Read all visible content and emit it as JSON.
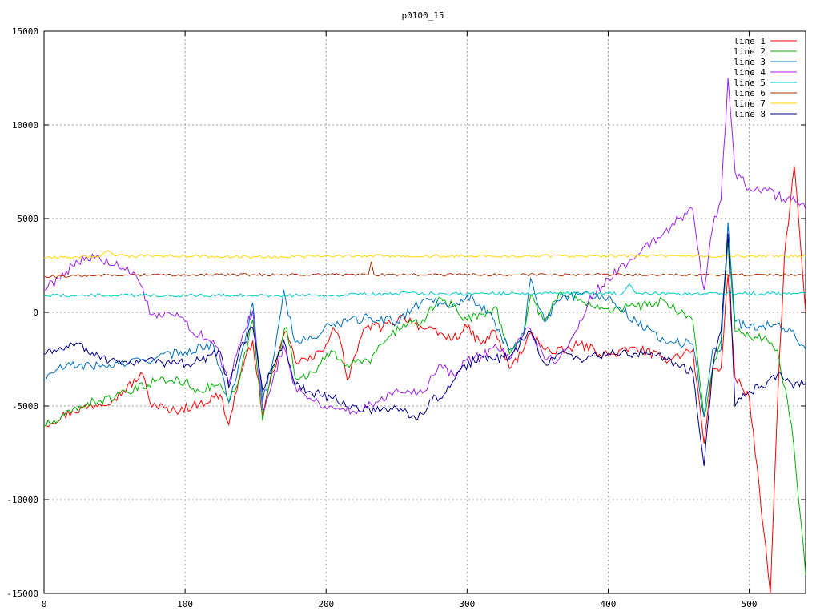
{
  "chart_data": {
    "type": "line",
    "title": "p0100_15",
    "xlabel": "",
    "ylabel": "",
    "xlim": [
      0,
      540
    ],
    "ylim": [
      -15000,
      15000
    ],
    "x_ticks": [
      0,
      100,
      200,
      300,
      400,
      500
    ],
    "y_ticks": [
      -15000,
      -10000,
      -5000,
      0,
      5000,
      10000,
      15000
    ],
    "grid": true,
    "legend_position": "top-right",
    "series": [
      {
        "name": "line 1",
        "color": "#ff0000",
        "points": [
          [
            0,
            -6000
          ],
          [
            20,
            -5300
          ],
          [
            50,
            -4600
          ],
          [
            70,
            -3300
          ],
          [
            75,
            -4800
          ],
          [
            90,
            -5300
          ],
          [
            110,
            -4900
          ],
          [
            125,
            -4400
          ],
          [
            131,
            -6000
          ],
          [
            138,
            -3600
          ],
          [
            148,
            -1500
          ],
          [
            155,
            -5500
          ],
          [
            162,
            -3200
          ],
          [
            172,
            -1000
          ],
          [
            178,
            -2600
          ],
          [
            190,
            -2500
          ],
          [
            200,
            -1700
          ],
          [
            205,
            -800
          ],
          [
            210,
            -1500
          ],
          [
            215,
            -3600
          ],
          [
            225,
            -1300
          ],
          [
            230,
            -700
          ],
          [
            240,
            -800
          ],
          [
            255,
            -200
          ],
          [
            270,
            -900
          ],
          [
            290,
            -1400
          ],
          [
            300,
            -800
          ],
          [
            310,
            -1700
          ],
          [
            320,
            -1000
          ],
          [
            330,
            -3000
          ],
          [
            340,
            -2000
          ],
          [
            345,
            -1100
          ],
          [
            360,
            -2200
          ],
          [
            370,
            -2000
          ],
          [
            380,
            -1700
          ],
          [
            400,
            -2300
          ],
          [
            420,
            -1900
          ],
          [
            440,
            -2500
          ],
          [
            460,
            -2000
          ],
          [
            468,
            -7000
          ],
          [
            474,
            -3000
          ],
          [
            480,
            -3000
          ],
          [
            485,
            2000
          ],
          [
            490,
            -3500
          ],
          [
            500,
            -4500
          ],
          [
            510,
            -11500
          ],
          [
            515,
            -15000
          ],
          [
            520,
            -5000
          ],
          [
            525,
            3000
          ],
          [
            532,
            7800
          ],
          [
            537,
            3000
          ],
          [
            540,
            0
          ]
        ]
      },
      {
        "name": "line 2",
        "color": "#00b000",
        "points": [
          [
            0,
            -6000
          ],
          [
            10,
            -5800
          ],
          [
            25,
            -5000
          ],
          [
            40,
            -4700
          ],
          [
            60,
            -4300
          ],
          [
            80,
            -3600
          ],
          [
            100,
            -3700
          ],
          [
            110,
            -4200
          ],
          [
            125,
            -3800
          ],
          [
            131,
            -4800
          ],
          [
            138,
            -3800
          ],
          [
            148,
            -400
          ],
          [
            155,
            -5800
          ],
          [
            162,
            -3000
          ],
          [
            172,
            -800
          ],
          [
            178,
            -3500
          ],
          [
            190,
            -3200
          ],
          [
            205,
            -2100
          ],
          [
            215,
            -2800
          ],
          [
            230,
            -2600
          ],
          [
            240,
            -1700
          ],
          [
            255,
            -600
          ],
          [
            270,
            -500
          ],
          [
            280,
            800
          ],
          [
            290,
            300
          ],
          [
            300,
            -400
          ],
          [
            310,
            -100
          ],
          [
            320,
            300
          ],
          [
            330,
            -2200
          ],
          [
            340,
            -1100
          ],
          [
            345,
            900
          ],
          [
            355,
            -500
          ],
          [
            365,
            1000
          ],
          [
            380,
            700
          ],
          [
            400,
            200
          ],
          [
            420,
            300
          ],
          [
            440,
            600
          ],
          [
            460,
            -400
          ],
          [
            468,
            -5600
          ],
          [
            474,
            -3000
          ],
          [
            480,
            -1500
          ],
          [
            485,
            3800
          ],
          [
            490,
            -1000
          ],
          [
            500,
            -1300
          ],
          [
            510,
            -1400
          ],
          [
            520,
            -2000
          ],
          [
            530,
            -6000
          ],
          [
            535,
            -10000
          ],
          [
            540,
            -14000
          ]
        ]
      },
      {
        "name": "line 3",
        "color": "#0070c0",
        "points": [
          [
            0,
            -3600
          ],
          [
            10,
            -3000
          ],
          [
            25,
            -2800
          ],
          [
            40,
            -2900
          ],
          [
            60,
            -2700
          ],
          [
            80,
            -2400
          ],
          [
            100,
            -2100
          ],
          [
            120,
            -1700
          ],
          [
            131,
            -4800
          ],
          [
            138,
            -2800
          ],
          [
            148,
            500
          ],
          [
            155,
            -4800
          ],
          [
            162,
            -2700
          ],
          [
            170,
            1200
          ],
          [
            178,
            -1600
          ],
          [
            190,
            -1400
          ],
          [
            205,
            -600
          ],
          [
            215,
            -500
          ],
          [
            230,
            -300
          ],
          [
            250,
            -500
          ],
          [
            270,
            700
          ],
          [
            290,
            400
          ],
          [
            300,
            900
          ],
          [
            315,
            0
          ],
          [
            330,
            -2000
          ],
          [
            340,
            -1100
          ],
          [
            345,
            1800
          ],
          [
            355,
            -500
          ],
          [
            365,
            600
          ],
          [
            380,
            1000
          ],
          [
            400,
            800
          ],
          [
            420,
            -500
          ],
          [
            440,
            -1500
          ],
          [
            460,
            -1700
          ],
          [
            468,
            -5600
          ],
          [
            474,
            -2000
          ],
          [
            480,
            -2000
          ],
          [
            485,
            4800
          ],
          [
            490,
            -500
          ],
          [
            500,
            -800
          ],
          [
            510,
            -700
          ],
          [
            520,
            -600
          ],
          [
            530,
            -1000
          ],
          [
            540,
            -2000
          ]
        ]
      },
      {
        "name": "line 4",
        "color": "#a020f0",
        "points": [
          [
            0,
            1200
          ],
          [
            10,
            1800
          ],
          [
            20,
            2500
          ],
          [
            30,
            3000
          ],
          [
            40,
            2800
          ],
          [
            50,
            2500
          ],
          [
            65,
            2000
          ],
          [
            70,
            1300
          ],
          [
            75,
            -100
          ],
          [
            80,
            -300
          ],
          [
            90,
            -100
          ],
          [
            100,
            -500
          ],
          [
            110,
            -1200
          ],
          [
            120,
            -1500
          ],
          [
            131,
            -3800
          ],
          [
            138,
            -1800
          ],
          [
            148,
            100
          ],
          [
            155,
            -5200
          ],
          [
            162,
            -3700
          ],
          [
            170,
            -1800
          ],
          [
            178,
            -3900
          ],
          [
            190,
            -4700
          ],
          [
            205,
            -5100
          ],
          [
            220,
            -5300
          ],
          [
            235,
            -4800
          ],
          [
            250,
            -4100
          ],
          [
            270,
            -4200
          ],
          [
            280,
            -2800
          ],
          [
            290,
            -3300
          ],
          [
            300,
            -2500
          ],
          [
            310,
            -2400
          ],
          [
            320,
            -1700
          ],
          [
            330,
            -2500
          ],
          [
            340,
            -1200
          ],
          [
            345,
            -900
          ],
          [
            355,
            -2500
          ],
          [
            365,
            -2500
          ],
          [
            380,
            -400
          ],
          [
            390,
            1000
          ],
          [
            400,
            1800
          ],
          [
            420,
            3000
          ],
          [
            440,
            4300
          ],
          [
            450,
            5000
          ],
          [
            460,
            5500
          ],
          [
            468,
            1200
          ],
          [
            474,
            4500
          ],
          [
            480,
            6000
          ],
          [
            485,
            12500
          ],
          [
            490,
            7500
          ],
          [
            500,
            6600
          ],
          [
            510,
            6600
          ],
          [
            520,
            6200
          ],
          [
            530,
            6000
          ],
          [
            540,
            5500
          ]
        ]
      },
      {
        "name": "line 5",
        "color": "#00c8c8",
        "points": [
          [
            0,
            900
          ],
          [
            50,
            900
          ],
          [
            100,
            900
          ],
          [
            150,
            900
          ],
          [
            200,
            900
          ],
          [
            250,
            1000
          ],
          [
            300,
            1000
          ],
          [
            350,
            1000
          ],
          [
            400,
            1000
          ],
          [
            410,
            1000
          ],
          [
            415,
            1500
          ],
          [
            420,
            1000
          ],
          [
            450,
            1000
          ],
          [
            500,
            1000
          ],
          [
            540,
            1000
          ]
        ]
      },
      {
        "name": "line 6",
        "color": "#b03000",
        "points": [
          [
            0,
            1900
          ],
          [
            50,
            2000
          ],
          [
            100,
            2000
          ],
          [
            150,
            2000
          ],
          [
            200,
            2000
          ],
          [
            230,
            2000
          ],
          [
            232,
            2700
          ],
          [
            234,
            2000
          ],
          [
            280,
            2000
          ],
          [
            330,
            2000
          ],
          [
            380,
            2000
          ],
          [
            430,
            2000
          ],
          [
            480,
            2000
          ],
          [
            540,
            2000
          ]
        ]
      },
      {
        "name": "line 7",
        "color": "#ffd700",
        "points": [
          [
            0,
            2900
          ],
          [
            40,
            3000
          ],
          [
            45,
            3300
          ],
          [
            50,
            3000
          ],
          [
            100,
            3000
          ],
          [
            150,
            2950
          ],
          [
            200,
            3000
          ],
          [
            250,
            3000
          ],
          [
            300,
            3000
          ],
          [
            350,
            3000
          ],
          [
            400,
            3000
          ],
          [
            450,
            3000
          ],
          [
            500,
            3000
          ],
          [
            540,
            3000
          ]
        ]
      },
      {
        "name": "line 8",
        "color": "#00008b",
        "points": [
          [
            0,
            -2200
          ],
          [
            10,
            -2000
          ],
          [
            20,
            -1700
          ],
          [
            30,
            -1900
          ],
          [
            40,
            -2500
          ],
          [
            55,
            -2800
          ],
          [
            70,
            -2500
          ],
          [
            90,
            -2800
          ],
          [
            110,
            -2600
          ],
          [
            125,
            -2100
          ],
          [
            131,
            -4000
          ],
          [
            138,
            -2200
          ],
          [
            148,
            -800
          ],
          [
            155,
            -4200
          ],
          [
            162,
            -2900
          ],
          [
            170,
            -1500
          ],
          [
            178,
            -3900
          ],
          [
            190,
            -4300
          ],
          [
            205,
            -4600
          ],
          [
            220,
            -5000
          ],
          [
            235,
            -5300
          ],
          [
            250,
            -5100
          ],
          [
            265,
            -5700
          ],
          [
            275,
            -4700
          ],
          [
            285,
            -4300
          ],
          [
            295,
            -3100
          ],
          [
            310,
            -2300
          ],
          [
            320,
            -2500
          ],
          [
            330,
            -2400
          ],
          [
            340,
            -1500
          ],
          [
            345,
            -1000
          ],
          [
            355,
            -2700
          ],
          [
            365,
            -2200
          ],
          [
            380,
            -2500
          ],
          [
            400,
            -2200
          ],
          [
            420,
            -2200
          ],
          [
            440,
            -2400
          ],
          [
            460,
            -3200
          ],
          [
            468,
            -8200
          ],
          [
            474,
            -3000
          ],
          [
            480,
            -1000
          ],
          [
            485,
            4200
          ],
          [
            490,
            -5000
          ],
          [
            500,
            -4200
          ],
          [
            510,
            -4000
          ],
          [
            520,
            -3300
          ],
          [
            530,
            -3800
          ],
          [
            540,
            -3800
          ]
        ]
      }
    ]
  }
}
